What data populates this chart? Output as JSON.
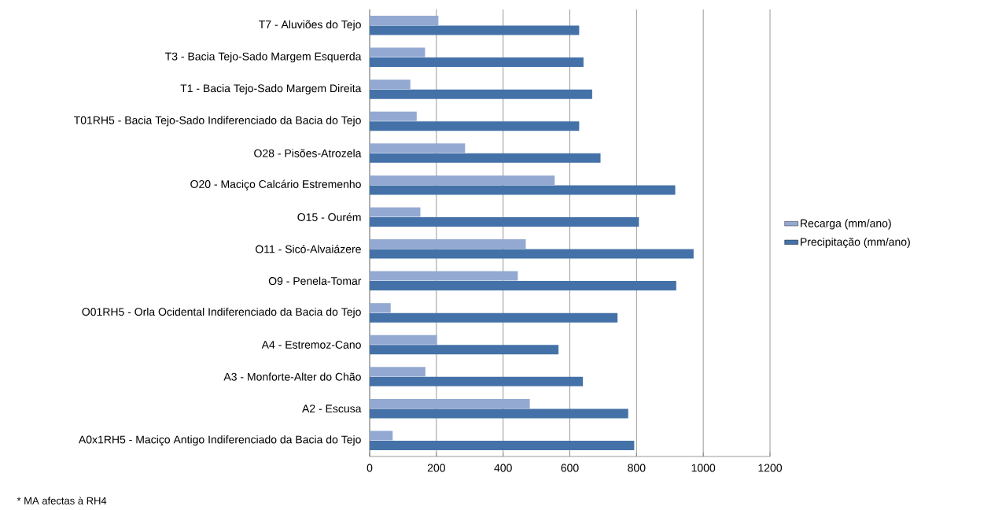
{
  "chart_data": {
    "type": "bar",
    "orientation": "horizontal",
    "categories": [
      "T7 - Aluviões do Tejo",
      "T3 - Bacia Tejo-Sado Margem Esquerda",
      "T1 - Bacia Tejo-Sado Margem Direita",
      "T01RH5 - Bacia Tejo-Sado Indiferenciado da Bacia do Tejo",
      "O28 - Pisões-Atrozela",
      "O20 - Maciço Calcário Estremenho",
      "O15 - Ourém",
      "O11 - Sicó-Alvaiázere",
      "O9 - Penela-Tomar",
      "O01RH5 - Orla Ocidental Indiferenciado da Bacia do Tejo",
      "A4 - Estremoz-Cano",
      "A3 - Monforte-Alter do Chão",
      "A2 - Escusa",
      "A0x1RH5 - Maciço Antigo Indiferenciado da Bacia do Tejo"
    ],
    "series": [
      {
        "name": "Recarga (mm/ano)",
        "color": "#93a9d2",
        "values": [
          206,
          166,
          122,
          141,
          286,
          555,
          152,
          468,
          444,
          63,
          202,
          167,
          480,
          69
        ]
      },
      {
        "name": "Precipitação (mm/ano)",
        "color": "#4472a8",
        "values": [
          628,
          641,
          667,
          628,
          692,
          916,
          807,
          971,
          919,
          743,
          566,
          639,
          775,
          793
        ]
      }
    ],
    "xlim": [
      0,
      1200
    ],
    "xticks": [
      0,
      200,
      400,
      600,
      800,
      1000,
      1200
    ],
    "grid": "x",
    "legend": "right",
    "annotations": [
      "* MA afectas à RH4"
    ]
  }
}
